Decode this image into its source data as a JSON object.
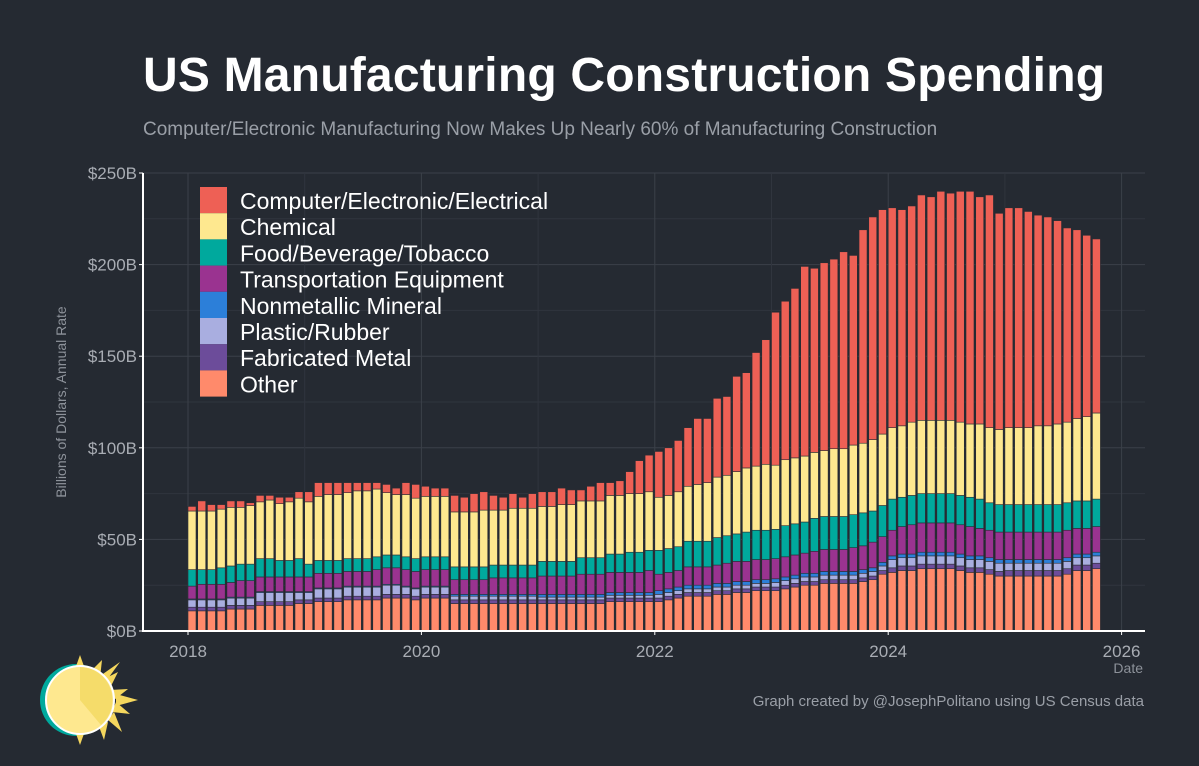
{
  "title": "US Manufacturing Construction Spending",
  "subtitle": "Computer/Electronic Manufacturing Now Makes Up Nearly 60% of Manufacturing Construction",
  "caption": "Graph created by @JosephPolitano using US Census data",
  "background_color": "#252a32",
  "logo": "sun-icon",
  "chart_data": {
    "type": "bar",
    "stacked": true,
    "xlabel": "Date",
    "ylabel": "Billions of Dollars, Annual Rate",
    "ylim": [
      0,
      250
    ],
    "xlim": [
      2017.6,
      2026.2
    ],
    "y_ticks": [
      "$0B",
      "$50B",
      "$100B",
      "$150B",
      "$200B",
      "$250B"
    ],
    "y_tick_values": [
      0,
      50,
      100,
      150,
      200,
      250
    ],
    "x_ticks": [
      "2018",
      "2020",
      "2022",
      "2024",
      "2026"
    ],
    "grid": true,
    "legend_position": "top-left",
    "x": [
      "2018-01",
      "2018-02",
      "2018-03",
      "2018-04",
      "2018-05",
      "2018-06",
      "2018-07",
      "2018-08",
      "2018-09",
      "2018-10",
      "2018-11",
      "2018-12",
      "2019-01",
      "2019-02",
      "2019-03",
      "2019-04",
      "2019-05",
      "2019-06",
      "2019-07",
      "2019-08",
      "2019-09",
      "2019-10",
      "2019-11",
      "2019-12",
      "2020-01",
      "2020-02",
      "2020-03",
      "2020-04",
      "2020-05",
      "2020-06",
      "2020-07",
      "2020-08",
      "2020-09",
      "2020-10",
      "2020-11",
      "2020-12",
      "2021-01",
      "2021-02",
      "2021-03",
      "2021-04",
      "2021-05",
      "2021-06",
      "2021-07",
      "2021-08",
      "2021-09",
      "2021-10",
      "2021-11",
      "2021-12",
      "2022-01",
      "2022-02",
      "2022-03",
      "2022-04",
      "2022-05",
      "2022-06",
      "2022-07",
      "2022-08",
      "2022-09",
      "2022-10",
      "2022-11",
      "2022-12",
      "2023-01",
      "2023-02",
      "2023-03",
      "2023-04",
      "2023-05",
      "2023-06",
      "2023-07",
      "2023-08",
      "2023-09",
      "2023-10",
      "2023-11",
      "2023-12",
      "2024-01",
      "2024-02",
      "2024-03",
      "2024-04",
      "2024-05",
      "2024-06",
      "2024-07",
      "2024-08",
      "2024-09",
      "2024-10",
      "2024-11",
      "2024-12",
      "2025-01",
      "2025-02",
      "2025-03",
      "2025-04",
      "2025-05",
      "2025-06",
      "2025-07",
      "2025-08",
      "2025-09",
      "2025-10"
    ],
    "series": [
      {
        "name": "Computer/Electronic/Electrical",
        "color": "#ee6055",
        "values": [
          2.5,
          5.5,
          3.5,
          2.5,
          3.5,
          3.5,
          1.5,
          3.5,
          2.5,
          3.5,
          2.5,
          3.5,
          5.5,
          7.5,
          6.5,
          6.5,
          5.5,
          4.5,
          4.5,
          3.5,
          4.5,
          3.5,
          6.5,
          7.5,
          5.5,
          4.5,
          4.5,
          9,
          8,
          10,
          10,
          8,
          7,
          8,
          6,
          8,
          8,
          8,
          9,
          8,
          6,
          8,
          10,
          7,
          8,
          12,
          18,
          20,
          25,
          26,
          28,
          32,
          36,
          35,
          43,
          43,
          52,
          52,
          62,
          68,
          83.5,
          86.5,
          92.5,
          103.5,
          100.5,
          102.5,
          103.5,
          107.5,
          103.5,
          116.5,
          121.5,
          122.5,
          120,
          118,
          118,
          123,
          122,
          125,
          124,
          126,
          127,
          124,
          127,
          118,
          120,
          120,
          118,
          115,
          114,
          111,
          106,
          103,
          99,
          95
        ]
      },
      {
        "name": "Chemical",
        "color": "#fee88f",
        "values": [
          32,
          32,
          32,
          32,
          32,
          31,
          32,
          31,
          32,
          31,
          32,
          33,
          34,
          35,
          36,
          36,
          36,
          37,
          37,
          37,
          34,
          33,
          34,
          33,
          33,
          33,
          33,
          30,
          30,
          30,
          31,
          30,
          30,
          31,
          31,
          31,
          30,
          30,
          31,
          31,
          31,
          31,
          31,
          32,
          32,
          32,
          32,
          32,
          29,
          29,
          30,
          30,
          31,
          32,
          33,
          33,
          34,
          35,
          35,
          36,
          35,
          36,
          36,
          36,
          36,
          36,
          37,
          37,
          38,
          38,
          39,
          39,
          39,
          39,
          40,
          40,
          40,
          40,
          40,
          40,
          40,
          41,
          41,
          41,
          42,
          42,
          42,
          43,
          43,
          44,
          44,
          45,
          46,
          47
        ]
      },
      {
        "name": "Food/Beverage/Tobacco",
        "color": "#00a99d",
        "values": [
          9,
          8,
          8,
          9,
          9,
          9,
          9,
          10,
          10,
          9,
          9,
          10,
          7,
          7,
          7,
          7,
          7,
          7,
          7,
          7,
          7,
          7,
          7,
          7,
          7,
          7,
          7,
          7,
          7,
          7,
          7,
          7,
          7,
          7,
          7,
          7,
          8,
          8,
          8,
          8,
          9,
          9,
          9,
          10,
          10,
          11,
          11,
          11,
          13,
          13,
          13,
          14,
          14,
          14,
          15,
          15,
          15,
          16,
          16,
          16,
          16,
          17,
          17,
          17,
          18,
          18,
          18,
          18,
          18,
          18,
          17,
          17,
          17,
          16,
          16,
          16,
          16,
          16,
          16,
          16,
          16,
          16,
          15,
          15,
          15,
          15,
          15,
          15,
          15,
          15,
          15,
          15,
          15,
          15
        ]
      },
      {
        "name": "Transportation Equipment",
        "color": "#9a3390",
        "values": [
          7,
          8,
          8,
          8,
          8,
          9,
          9,
          8,
          8,
          8,
          8,
          8,
          8,
          8,
          8,
          8,
          8,
          8,
          8,
          9,
          9,
          9,
          9,
          9,
          9,
          9,
          9,
          8,
          8,
          8,
          8,
          9,
          9,
          9,
          9,
          9,
          10,
          10,
          10,
          10,
          11,
          11,
          11,
          11,
          11,
          11,
          11,
          12,
          9,
          9,
          9,
          10,
          10,
          10,
          10,
          11,
          11,
          11,
          11,
          11,
          11,
          11,
          11,
          11,
          12,
          12,
          12,
          12,
          13,
          13,
          14,
          14,
          14,
          15,
          16,
          16,
          16,
          16,
          16,
          16,
          16,
          15,
          15,
          15,
          15,
          15,
          15,
          15,
          15,
          15,
          15,
          14,
          14,
          14
        ]
      },
      {
        "name": "Nonmetallic Mineral",
        "color": "#2c7fd9",
        "values": [
          0.5,
          0.5,
          0.5,
          0.5,
          0.5,
          0.5,
          0.5,
          0.5,
          0.5,
          0.5,
          0.5,
          0.5,
          0.5,
          0.5,
          0.5,
          0.5,
          0.5,
          0.5,
          0.5,
          0.5,
          0.5,
          0.5,
          0.5,
          0.5,
          0.5,
          0.5,
          0.5,
          1,
          1,
          1,
          1,
          1,
          1,
          1,
          1,
          1,
          1.5,
          1.5,
          1.5,
          1.5,
          1.5,
          1.5,
          1.5,
          1.5,
          1.5,
          1.5,
          1.5,
          1.5,
          2,
          2,
          2,
          2,
          2,
          2,
          2,
          2,
          2,
          2,
          2,
          2,
          2,
          2,
          2,
          2,
          2,
          2,
          2,
          2,
          2,
          2,
          2,
          2,
          2,
          2,
          2,
          2,
          2,
          2,
          2,
          2,
          2,
          2,
          2,
          2,
          2,
          2,
          2,
          2,
          2,
          2,
          2,
          2,
          2,
          2
        ]
      },
      {
        "name": "Plastic/Rubber",
        "color": "#a9aee0",
        "values": [
          4,
          4,
          4,
          4,
          4,
          4,
          4,
          5,
          5,
          5,
          5,
          4,
          4,
          5,
          5,
          5,
          5,
          5,
          5,
          5,
          5,
          5,
          4,
          4,
          4,
          4,
          4,
          2,
          2,
          2,
          2,
          2,
          2,
          2,
          2,
          2,
          1.5,
          1.5,
          1.5,
          1.5,
          1.5,
          1.5,
          1.5,
          1.5,
          1.5,
          1.5,
          1.5,
          1.5,
          2,
          2,
          2,
          2,
          2,
          2,
          2,
          2,
          2,
          2,
          2,
          2,
          2.5,
          2.5,
          2.5,
          2.5,
          2.5,
          2.5,
          2.5,
          2.5,
          2.5,
          2.5,
          2.5,
          2.5,
          4.5,
          4.5,
          4.5,
          4.5,
          4.5,
          4.5,
          4.5,
          4.5,
          4.5,
          4.5,
          4.5,
          4.5,
          4,
          4,
          4,
          4,
          4,
          4,
          4,
          4,
          4,
          4
        ]
      },
      {
        "name": "Fabricated Metal",
        "color": "#6c4c9a",
        "values": [
          2,
          2,
          2,
          2,
          2,
          2,
          2,
          2,
          2,
          2,
          2,
          2,
          2,
          2,
          2,
          2,
          2,
          2,
          2,
          2,
          2,
          2,
          2,
          2,
          2,
          2,
          2,
          2,
          2,
          2,
          2,
          2,
          2,
          2,
          2,
          2,
          2,
          2,
          2,
          2,
          2,
          2,
          2,
          2,
          2,
          2,
          2,
          2,
          2,
          2,
          2,
          2,
          2,
          2,
          2,
          2,
          2,
          2,
          2,
          2,
          2,
          2,
          2,
          2,
          2,
          2,
          2,
          2,
          2,
          2,
          2,
          2,
          2.5,
          2.5,
          2.5,
          2.5,
          2.5,
          2.5,
          2.5,
          2.5,
          2.5,
          2.5,
          2.5,
          2.5,
          3,
          3,
          3,
          3,
          3,
          3,
          3,
          3,
          3,
          3
        ]
      },
      {
        "name": "Other",
        "color": "#ff8a6b",
        "values": [
          11,
          11,
          11,
          11,
          12,
          12,
          12,
          14,
          14,
          14,
          14,
          15,
          15,
          16,
          16,
          16,
          17,
          17,
          17,
          17,
          18,
          18,
          18,
          17,
          18,
          18,
          18,
          15,
          15,
          15,
          15,
          15,
          15,
          15,
          15,
          15,
          15,
          15,
          15,
          15,
          15,
          15,
          15,
          16,
          16,
          16,
          16,
          16,
          16,
          17,
          18,
          19,
          19,
          19,
          20,
          20,
          21,
          21,
          22,
          22,
          22,
          23,
          24,
          25,
          25,
          26,
          26,
          26,
          26,
          27,
          28,
          31,
          32,
          33,
          33,
          34,
          34,
          34,
          34,
          33,
          32,
          32,
          31,
          30,
          30,
          30,
          30,
          30,
          30,
          30,
          31,
          33,
          33,
          34
        ]
      }
    ]
  }
}
